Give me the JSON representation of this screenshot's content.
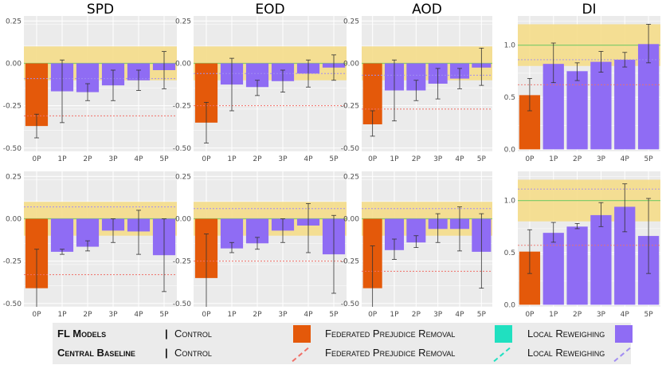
{
  "chart_data": [
    {
      "type": "bar",
      "title": "SPD",
      "categories": [
        "0P",
        "1P",
        "2P",
        "3P",
        "4P",
        "5P"
      ],
      "values": [
        -0.37,
        -0.165,
        -0.17,
        -0.13,
        -0.1,
        -0.04
      ],
      "err_low": [
        -0.44,
        -0.35,
        -0.22,
        -0.22,
        -0.16,
        -0.15
      ],
      "err_high": [
        -0.3,
        0.02,
        -0.12,
        -0.04,
        -0.04,
        0.07
      ],
      "yticks": [
        "0.25",
        "0.00",
        "-0.25",
        "-0.50"
      ],
      "ytick_values": [
        0.25,
        0,
        -0.25,
        -0.5
      ],
      "ylim": [
        -0.52,
        0.28
      ],
      "fair_band": [
        -0.1,
        0.1
      ],
      "ref_line": 0,
      "baseline_control": -0.31,
      "baseline_local": -0.09
    },
    {
      "type": "bar",
      "title": "EOD",
      "categories": [
        "0P",
        "1P",
        "2P",
        "3P",
        "4P",
        "5P"
      ],
      "values": [
        -0.35,
        -0.125,
        -0.14,
        -0.105,
        -0.06,
        -0.025
      ],
      "err_low": [
        -0.47,
        -0.28,
        -0.19,
        -0.17,
        -0.14,
        -0.1
      ],
      "err_high": [
        -0.23,
        0.03,
        -0.1,
        -0.04,
        0.02,
        0.05
      ],
      "yticks": [
        "0.25",
        "0.00",
        "-0.25",
        "-0.50"
      ],
      "ytick_values": [
        0.25,
        0,
        -0.25,
        -0.5
      ],
      "ylim": [
        -0.52,
        0.28
      ],
      "fair_band": [
        -0.1,
        0.1
      ],
      "ref_line": 0,
      "baseline_control": -0.25,
      "baseline_local": -0.06
    },
    {
      "type": "bar",
      "title": "AOD",
      "categories": [
        "0P",
        "1P",
        "2P",
        "3P",
        "4P",
        "5P"
      ],
      "values": [
        -0.36,
        -0.16,
        -0.16,
        -0.12,
        -0.09,
        -0.025
      ],
      "err_low": [
        -0.43,
        -0.34,
        -0.22,
        -0.21,
        -0.15,
        -0.13
      ],
      "err_high": [
        -0.28,
        0.02,
        -0.1,
        -0.03,
        -0.03,
        0.09
      ],
      "yticks": [
        "0.25",
        "0.00",
        "-0.25",
        "-0.50"
      ],
      "ytick_values": [
        0.25,
        0,
        -0.25,
        -0.5
      ],
      "ylim": [
        -0.52,
        0.28
      ],
      "fair_band": [
        -0.1,
        0.1
      ],
      "ref_line": 0,
      "baseline_control": -0.27,
      "baseline_local": -0.07
    },
    {
      "type": "bar",
      "title": "DI",
      "categories": [
        "0P",
        "1P",
        "2P",
        "3P",
        "4P",
        "5P"
      ],
      "values": [
        0.52,
        0.82,
        0.75,
        0.84,
        0.86,
        1.01
      ],
      "err_low": [
        0.37,
        0.64,
        0.66,
        0.74,
        0.79,
        0.83
      ],
      "err_high": [
        0.68,
        1.02,
        0.83,
        0.94,
        0.93,
        1.2
      ],
      "yticks": [
        "1.0",
        "0.5",
        "0.0"
      ],
      "ytick_values": [
        1,
        0.5,
        0
      ],
      "ylim": [
        -0.02,
        1.28
      ],
      "fair_band": [
        0.8,
        1.2
      ],
      "ref_line": 1,
      "baseline_control": 0.62,
      "baseline_local": 0.86
    },
    {
      "type": "bar",
      "title": "",
      "categories": [
        "0P",
        "1P",
        "2P",
        "3P",
        "4P",
        "5P"
      ],
      "values": [
        -0.41,
        -0.195,
        -0.165,
        -0.07,
        -0.075,
        -0.215
      ],
      "err_low": [
        -0.52,
        -0.21,
        -0.19,
        -0.14,
        -0.21,
        -0.43
      ],
      "err_high": [
        -0.18,
        -0.18,
        -0.13,
        0.0,
        0.05,
        0.0
      ],
      "yticks": [
        "0.25",
        "0.00",
        "-0.25",
        "-0.50"
      ],
      "ytick_values": [
        0.25,
        0,
        -0.25,
        -0.5
      ],
      "ylim": [
        -0.52,
        0.28
      ],
      "fair_band": [
        -0.1,
        0.1
      ],
      "ref_line": 0,
      "baseline_control": -0.33,
      "baseline_local": 0.07
    },
    {
      "type": "bar",
      "title": "",
      "categories": [
        "0P",
        "1P",
        "2P",
        "3P",
        "4P",
        "5P"
      ],
      "values": [
        -0.35,
        -0.175,
        -0.145,
        -0.07,
        -0.04,
        -0.21
      ],
      "err_low": [
        -0.52,
        -0.2,
        -0.18,
        -0.14,
        -0.2,
        -0.44
      ],
      "err_high": [
        -0.09,
        -0.14,
        -0.11,
        0.0,
        0.09,
        0.02
      ],
      "yticks": [
        "0.25",
        "0.00",
        "-0.25",
        "-0.50"
      ],
      "ytick_values": [
        0.25,
        0,
        -0.25,
        -0.5
      ],
      "ylim": [
        -0.52,
        0.28
      ],
      "fair_band": [
        -0.1,
        0.1
      ],
      "ref_line": 0,
      "baseline_control": -0.25,
      "baseline_local": 0.06
    },
    {
      "type": "bar",
      "title": "",
      "categories": [
        "0P",
        "1P",
        "2P",
        "3P",
        "4P",
        "5P"
      ],
      "values": [
        -0.41,
        -0.185,
        -0.14,
        -0.06,
        -0.06,
        -0.195
      ],
      "err_low": [
        -0.52,
        -0.24,
        -0.17,
        -0.14,
        -0.19,
        -0.41
      ],
      "err_high": [
        -0.16,
        -0.12,
        -0.1,
        0.03,
        0.07,
        0.03
      ],
      "yticks": [
        "0.25",
        "0.00",
        "-0.25",
        "-0.50"
      ],
      "ytick_values": [
        0.25,
        0,
        -0.25,
        -0.5
      ],
      "ylim": [
        -0.52,
        0.28
      ],
      "fair_band": [
        -0.1,
        0.1
      ],
      "ref_line": 0,
      "baseline_control": -0.31,
      "baseline_local": 0.06
    },
    {
      "type": "bar",
      "title": "",
      "categories": [
        "0P",
        "1P",
        "2P",
        "3P",
        "4P",
        "5P"
      ],
      "values": [
        0.51,
        0.69,
        0.75,
        0.86,
        0.94,
        0.66
      ],
      "err_low": [
        0.3,
        0.6,
        0.73,
        0.75,
        0.7,
        0.3
      ],
      "err_high": [
        0.72,
        0.79,
        0.78,
        0.98,
        1.16,
        1.02
      ],
      "yticks": [
        "1.0",
        "0.5",
        "0.0"
      ],
      "ytick_values": [
        1,
        0.5,
        0
      ],
      "ylim": [
        -0.02,
        1.28
      ],
      "fair_band": [
        0.8,
        1.2
      ],
      "ref_line": 1,
      "baseline_control": 0.57,
      "baseline_local": 1.11
    }
  ],
  "colors": {
    "panel_bg": "#ebebeb",
    "grid": "#ffffff",
    "control_bar": "#e4590a",
    "local_bar": "#8f6cf4",
    "fpr_swatch": "#20e0c0",
    "fair_band": "#f5dd8a",
    "ref_line": "#86cc6b",
    "baseline_control_line": "#f07068",
    "baseline_local_line": "#a18cf2",
    "error_bar": "#333333",
    "legend_bg": "#ebebeb"
  },
  "legend": {
    "fl_models": "FL Models",
    "central_baseline": "Central Baseline",
    "separator": "|",
    "control": "Control",
    "federated_prejudice_removal": "Federated Prejudice Removal",
    "local_reweighing": "Local Reweighing"
  }
}
